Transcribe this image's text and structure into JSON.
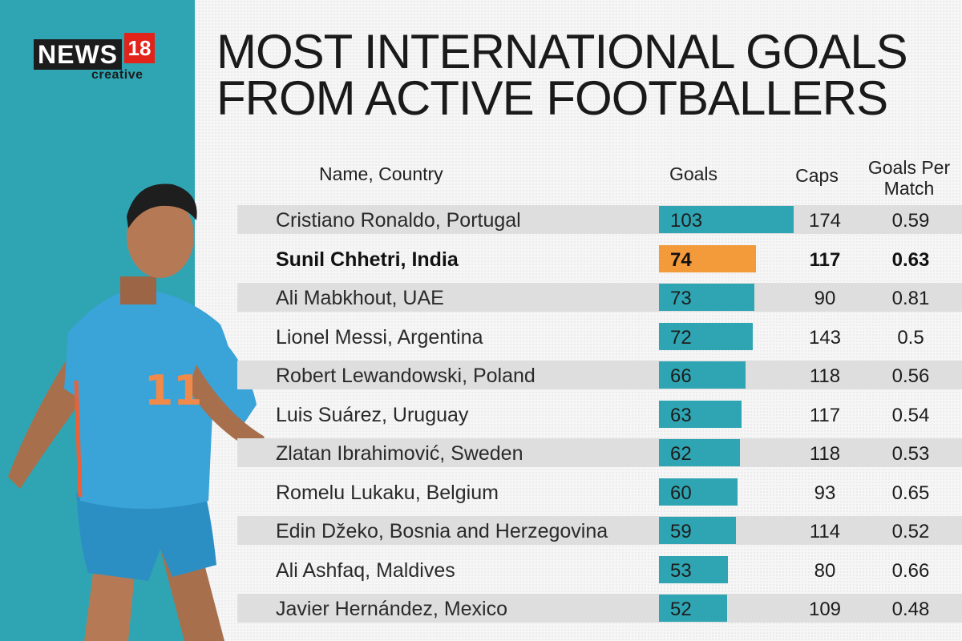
{
  "brand": {
    "news": "NEWS",
    "number": "18",
    "sub": "creative"
  },
  "title_lines": [
    "MOST INTERNATIONAL GOALS",
    "FROM ACTIVE FOOTBALLERS"
  ],
  "headers": {
    "name": "Name, Country",
    "goals": "Goals",
    "caps": "Caps",
    "gpm_line1": "Goals Per",
    "gpm_line2": "Match"
  },
  "player_jersey_number": "11",
  "colors": {
    "teal": "#2fa5b3",
    "highlight": "#f39a3b",
    "stripe": "#dedede"
  },
  "chart_data": {
    "type": "table",
    "highlight": "Sunil Chhetri, India",
    "columns": [
      "Name, Country",
      "Goals",
      "Caps",
      "Goals Per Match"
    ],
    "rows": [
      {
        "name": "Cristiano Ronaldo, Portugal",
        "goals": 103,
        "caps": 174,
        "gpm": "0.59"
      },
      {
        "name": "Sunil Chhetri, India",
        "goals": 74,
        "caps": 117,
        "gpm": "0.63"
      },
      {
        "name": "Ali Mabkhout, UAE",
        "goals": 73,
        "caps": 90,
        "gpm": "0.81"
      },
      {
        "name": "Lionel Messi, Argentina",
        "goals": 72,
        "caps": 143,
        "gpm": "0.5"
      },
      {
        "name": "Robert Lewandowski, Poland",
        "goals": 66,
        "caps": 118,
        "gpm": "0.56"
      },
      {
        "name": "Luis Suárez, Uruguay",
        "goals": 63,
        "caps": 117,
        "gpm": "0.54"
      },
      {
        "name": "Zlatan Ibrahimović, Sweden",
        "goals": 62,
        "caps": 118,
        "gpm": "0.53"
      },
      {
        "name": "Romelu Lukaku, Belgium",
        "goals": 60,
        "caps": 93,
        "gpm": "0.65"
      },
      {
        "name": "Edin Džeko, Bosnia and Herzegovina",
        "goals": 59,
        "caps": 114,
        "gpm": "0.52"
      },
      {
        "name": "Ali Ashfaq, Maldives",
        "goals": 53,
        "caps": 80,
        "gpm": "0.66"
      },
      {
        "name": "Javier Hernández, Mexico",
        "goals": 52,
        "caps": 109,
        "gpm": "0.48"
      }
    ]
  }
}
